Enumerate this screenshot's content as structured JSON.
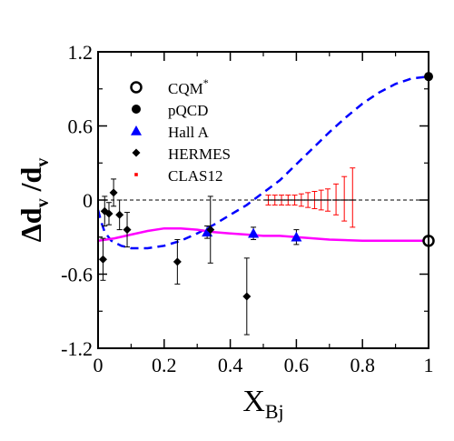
{
  "chart_data": {
    "type": "scatter",
    "xlim": [
      0,
      1
    ],
    "ylim": [
      -1.2,
      1.2
    ],
    "x_ticks": [
      "0",
      "0.2",
      "0.4",
      "0.6",
      "0.8",
      "1"
    ],
    "y_ticks": [
      "1.2",
      "0.6",
      "0",
      "-0.6",
      "-1.2"
    ],
    "xlabel": {
      "main": "X",
      "sub": "Bj"
    },
    "ylabel": {
      "p1": "Δd",
      "s1": "v",
      "p2": " /d",
      "s2": "v"
    },
    "grid": false,
    "legend_placement": "top-left",
    "legend": [
      {
        "key": "cqm",
        "label": "CQM",
        "sup": "*",
        "marker": "open-circle",
        "color": "#000000"
      },
      {
        "key": "pqcd",
        "label": "pQCD",
        "marker": "filled-circle",
        "color": "#000000"
      },
      {
        "key": "halla",
        "label": "Hall A",
        "marker": "triangle",
        "color": "#0000ff"
      },
      {
        "key": "hermes",
        "label": "HERMES",
        "marker": "diamond",
        "color": "#000000"
      },
      {
        "key": "clas12",
        "label": "CLAS12",
        "marker": "small-square",
        "color": "#ff0000"
      }
    ],
    "reference_line": {
      "y": 0,
      "style": "dashed",
      "color": "#000000"
    },
    "series": [
      {
        "key": "cqm",
        "type": "scatter",
        "marker": "open-circle",
        "color": "#000000",
        "points": [
          {
            "x": 1.0,
            "y": -0.33
          }
        ]
      },
      {
        "key": "pqcd",
        "type": "scatter",
        "marker": "filled-circle",
        "color": "#000000",
        "points": [
          {
            "x": 1.0,
            "y": 1.0
          }
        ]
      },
      {
        "key": "halla",
        "type": "scatter",
        "marker": "triangle",
        "color": "#0000ff",
        "points": [
          {
            "x": 0.33,
            "y": -0.26,
            "err": 0.05
          },
          {
            "x": 0.47,
            "y": -0.27,
            "err": 0.05
          },
          {
            "x": 0.6,
            "y": -0.3,
            "err": 0.06
          }
        ]
      },
      {
        "key": "hermes",
        "type": "scatter",
        "marker": "diamond",
        "color": "#000000",
        "points": [
          {
            "x": 0.015,
            "y": -0.48,
            "err": 0.17
          },
          {
            "x": 0.02,
            "y": -0.09,
            "err": 0.12
          },
          {
            "x": 0.033,
            "y": -0.11,
            "err": 0.09
          },
          {
            "x": 0.047,
            "y": 0.06,
            "err": 0.11
          },
          {
            "x": 0.065,
            "y": -0.12,
            "err": 0.12
          },
          {
            "x": 0.088,
            "y": -0.24,
            "err": 0.14
          },
          {
            "x": 0.24,
            "y": -0.5,
            "err": 0.18
          },
          {
            "x": 0.34,
            "y": -0.24,
            "err": 0.27
          },
          {
            "x": 0.45,
            "y": -0.78,
            "err": 0.31
          }
        ]
      },
      {
        "key": "clas12",
        "type": "scatter",
        "marker": "small-square",
        "color": "#ff0000",
        "points": [
          {
            "x": 0.515,
            "y": 0.0,
            "err_lo": 0.04,
            "err_hi": 0.04
          },
          {
            "x": 0.535,
            "y": 0.0,
            "err_lo": 0.04,
            "err_hi": 0.04
          },
          {
            "x": 0.555,
            "y": 0.0,
            "err_lo": 0.04,
            "err_hi": 0.04
          },
          {
            "x": 0.575,
            "y": 0.0,
            "err_lo": 0.04,
            "err_hi": 0.04
          },
          {
            "x": 0.595,
            "y": 0.0,
            "err_lo": 0.04,
            "err_hi": 0.04
          },
          {
            "x": 0.615,
            "y": 0.0,
            "err_lo": 0.05,
            "err_hi": 0.05
          },
          {
            "x": 0.635,
            "y": 0.0,
            "err_lo": 0.06,
            "err_hi": 0.06
          },
          {
            "x": 0.655,
            "y": 0.0,
            "err_lo": 0.07,
            "err_hi": 0.07
          },
          {
            "x": 0.675,
            "y": 0.0,
            "err_lo": 0.08,
            "err_hi": 0.08
          },
          {
            "x": 0.695,
            "y": 0.0,
            "err_lo": 0.09,
            "err_hi": 0.09
          },
          {
            "x": 0.72,
            "y": 0.0,
            "err_lo": 0.12,
            "err_hi": 0.13
          },
          {
            "x": 0.745,
            "y": 0.0,
            "err_lo": 0.17,
            "err_hi": 0.19
          },
          {
            "x": 0.77,
            "y": 0.0,
            "err_lo": 0.22,
            "err_hi": 0.26
          }
        ]
      },
      {
        "key": "pqcd_curve",
        "type": "line",
        "style": "dashed",
        "color": "#0000ff",
        "points": [
          {
            "x": 0.0,
            "y": -0.08
          },
          {
            "x": 0.01,
            "y": -0.18
          },
          {
            "x": 0.02,
            "y": -0.26
          },
          {
            "x": 0.04,
            "y": -0.33
          },
          {
            "x": 0.07,
            "y": -0.37
          },
          {
            "x": 0.1,
            "y": -0.39
          },
          {
            "x": 0.15,
            "y": -0.39
          },
          {
            "x": 0.2,
            "y": -0.37
          },
          {
            "x": 0.25,
            "y": -0.33
          },
          {
            "x": 0.3,
            "y": -0.27
          },
          {
            "x": 0.35,
            "y": -0.2
          },
          {
            "x": 0.4,
            "y": -0.12
          },
          {
            "x": 0.45,
            "y": -0.04
          },
          {
            "x": 0.5,
            "y": 0.06
          },
          {
            "x": 0.55,
            "y": 0.16
          },
          {
            "x": 0.6,
            "y": 0.29
          },
          {
            "x": 0.65,
            "y": 0.42
          },
          {
            "x": 0.7,
            "y": 0.55
          },
          {
            "x": 0.75,
            "y": 0.67
          },
          {
            "x": 0.8,
            "y": 0.78
          },
          {
            "x": 0.85,
            "y": 0.87
          },
          {
            "x": 0.9,
            "y": 0.94
          },
          {
            "x": 0.95,
            "y": 0.985
          },
          {
            "x": 1.0,
            "y": 1.0
          }
        ]
      },
      {
        "key": "cqm_curve",
        "type": "line",
        "style": "solid",
        "color": "#ff00ff",
        "points": [
          {
            "x": 0.0,
            "y": -0.33
          },
          {
            "x": 0.05,
            "y": -0.31
          },
          {
            "x": 0.1,
            "y": -0.28
          },
          {
            "x": 0.15,
            "y": -0.25
          },
          {
            "x": 0.2,
            "y": -0.23
          },
          {
            "x": 0.25,
            "y": -0.23
          },
          {
            "x": 0.3,
            "y": -0.24
          },
          {
            "x": 0.35,
            "y": -0.26
          },
          {
            "x": 0.4,
            "y": -0.27
          },
          {
            "x": 0.45,
            "y": -0.28
          },
          {
            "x": 0.5,
            "y": -0.29
          },
          {
            "x": 0.55,
            "y": -0.29
          },
          {
            "x": 0.6,
            "y": -0.3
          },
          {
            "x": 0.65,
            "y": -0.31
          },
          {
            "x": 0.7,
            "y": -0.32
          },
          {
            "x": 0.8,
            "y": -0.33
          },
          {
            "x": 0.9,
            "y": -0.33
          },
          {
            "x": 1.0,
            "y": -0.33
          }
        ]
      }
    ]
  }
}
